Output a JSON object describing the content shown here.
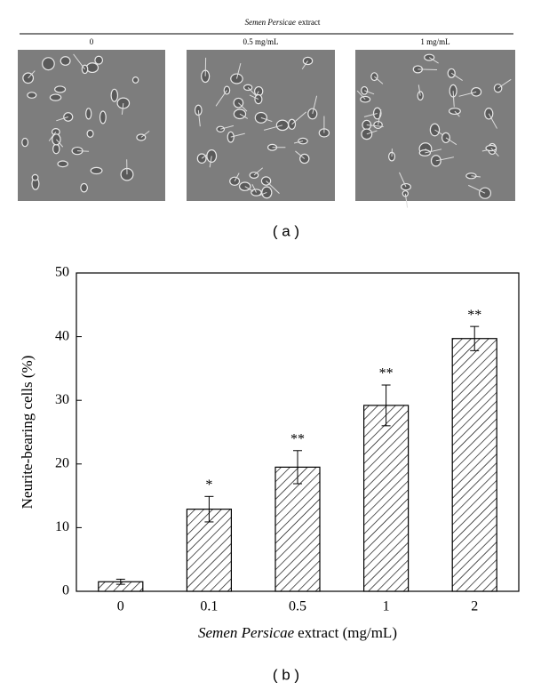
{
  "panel_a": {
    "title_italic": "Semen Persicae",
    "title_rest": "extract",
    "labels": [
      "0",
      "0.5 mg/mL",
      "1 mg/mL"
    ],
    "caption": "( a )"
  },
  "chart_data": {
    "type": "bar",
    "caption": "( b )",
    "y_label": "Neurite-bearing cells (%)",
    "x_label_italic": "Semen Persicae",
    "x_label_rest": "extract (mg/mL)",
    "categories": [
      "0",
      "0.1",
      "0.5",
      "1",
      "2"
    ],
    "values": [
      1.5,
      12.9,
      19.5,
      29.2,
      39.7
    ],
    "errors": [
      0.4,
      2.0,
      2.6,
      3.2,
      1.9
    ],
    "annotations": [
      null,
      "*",
      "**",
      "**",
      "**"
    ],
    "ylim": [
      0,
      50
    ],
    "yticks": [
      0,
      10,
      20,
      30,
      40,
      50
    ],
    "color": "hatched"
  }
}
